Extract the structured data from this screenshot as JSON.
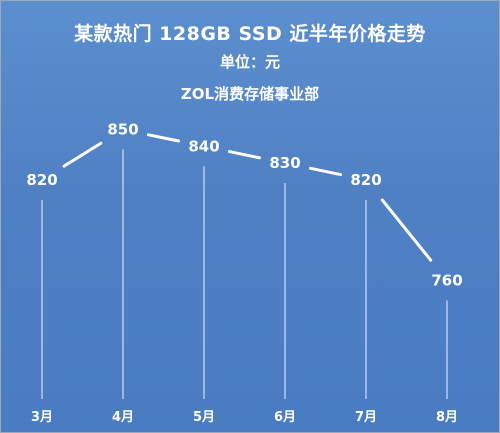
{
  "chart_data": {
    "type": "line",
    "title": "某款热门 128GB SSD 近半年价格走势",
    "subtitle": "单位：元",
    "source": "ZOL消费存储事业部",
    "categories": [
      "3月",
      "4月",
      "5月",
      "6月",
      "7月",
      "8月"
    ],
    "series": [
      {
        "values": [
          820,
          850,
          840,
          830,
          820,
          760
        ]
      }
    ],
    "ylim": [
      700,
      870
    ],
    "grid": false,
    "colors": {
      "background": "#4f80c4",
      "line": "#ffffff",
      "text": "#ffffff"
    }
  }
}
